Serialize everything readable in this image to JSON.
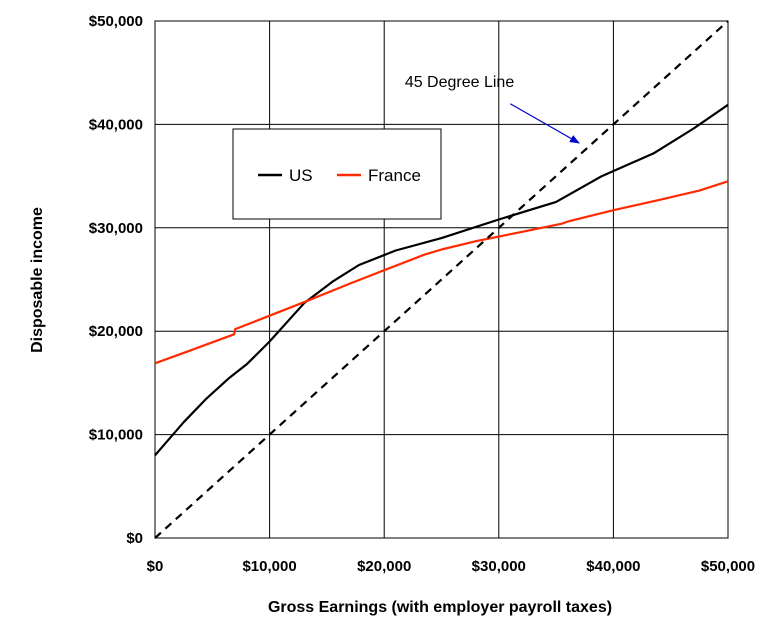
{
  "chart_data": {
    "type": "line",
    "title": "",
    "xlabel": "Gross Earnings (with employer payroll taxes)",
    "ylabel": "Disposable income",
    "xlim": [
      0,
      50000
    ],
    "ylim": [
      0,
      50000
    ],
    "x_ticks": [
      0,
      10000,
      20000,
      30000,
      40000,
      50000
    ],
    "y_ticks": [
      0,
      10000,
      20000,
      30000,
      40000,
      50000
    ],
    "x_tick_labels": [
      "$0",
      "$10,000",
      "$20,000",
      "$30,000",
      "$40,000",
      "$50,000"
    ],
    "y_tick_labels": [
      "$0",
      "$10,000",
      "$20,000",
      "$30,000",
      "$40,000",
      "$50,000"
    ],
    "grid": true,
    "legend_position": "top-left",
    "series": [
      {
        "name": "US",
        "color": "#000000",
        "style": "solid",
        "points": [
          [
            0,
            8000
          ],
          [
            2500,
            11200
          ],
          [
            4500,
            13500
          ],
          [
            6500,
            15500
          ],
          [
            8000,
            16800
          ],
          [
            10000,
            19000
          ],
          [
            13000,
            22700
          ],
          [
            15500,
            24800
          ],
          [
            17800,
            26400
          ],
          [
            21000,
            27800
          ],
          [
            25000,
            29000
          ],
          [
            30000,
            30800
          ],
          [
            35000,
            32500
          ],
          [
            39000,
            35000
          ],
          [
            43500,
            37200
          ],
          [
            47000,
            39600
          ],
          [
            50000,
            41900
          ]
        ]
      },
      {
        "name": "France",
        "color": "#ff2a00",
        "style": "solid",
        "points": [
          [
            0,
            16900
          ],
          [
            3000,
            18100
          ],
          [
            6900,
            19700
          ],
          [
            7000,
            20200
          ],
          [
            10000,
            21500
          ],
          [
            13000,
            22800
          ],
          [
            17000,
            24600
          ],
          [
            20000,
            25900
          ],
          [
            23500,
            27400
          ],
          [
            25000,
            27900
          ],
          [
            28000,
            28700
          ],
          [
            32000,
            29600
          ],
          [
            35500,
            30400
          ],
          [
            36000,
            30600
          ],
          [
            40000,
            31700
          ],
          [
            44000,
            32700
          ],
          [
            47500,
            33600
          ],
          [
            50000,
            34500
          ]
        ]
      },
      {
        "name": "",
        "color": "#000000",
        "style": "dashed",
        "points": [
          [
            0,
            0
          ],
          [
            50000,
            50000
          ]
        ]
      }
    ],
    "annotations": [
      {
        "text": "45 Degree Line",
        "arrow_color": "#0000cc",
        "text_at": [
          21800,
          43600
        ],
        "arrow_from": [
          31000,
          42000
        ],
        "arrow_to": [
          37000,
          38200
        ]
      }
    ]
  }
}
